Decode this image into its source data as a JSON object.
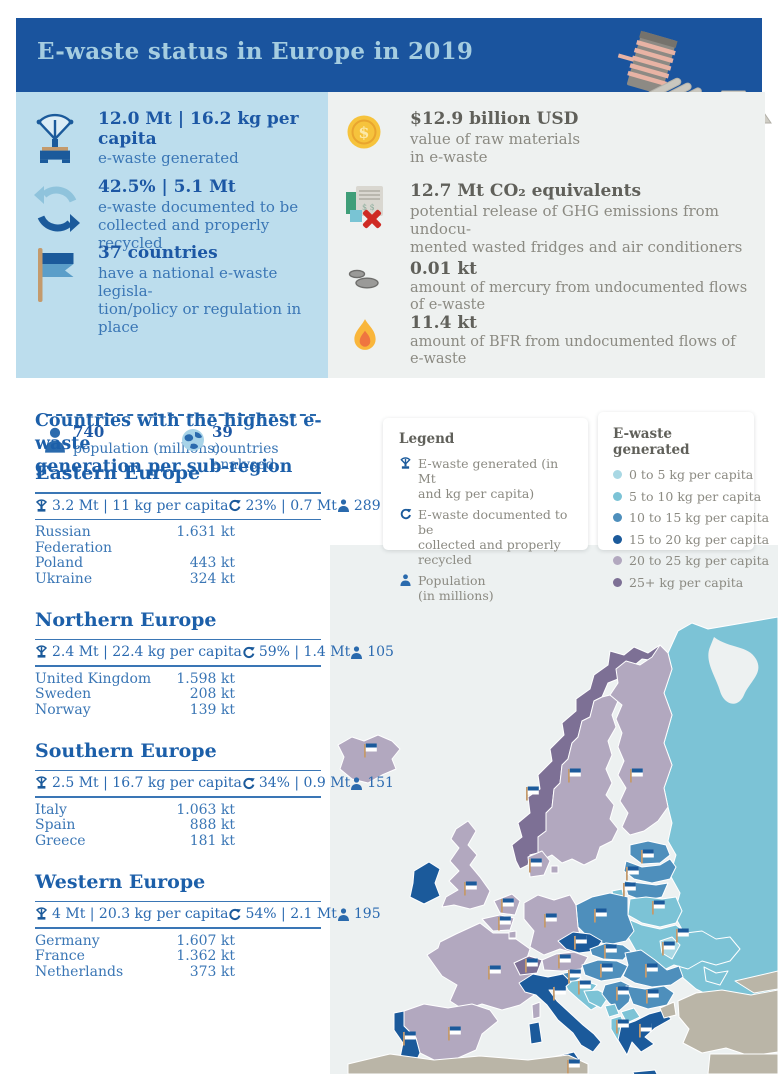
{
  "header": {
    "title": "E-waste status in Europe in 2019"
  },
  "summary_left": {
    "stats": [
      {
        "icon": "scale-icon",
        "value": "12.0 Mt | 16.2 kg per capita",
        "desc_lines": [
          "e-waste generated"
        ]
      },
      {
        "icon": "recycle-icon",
        "value": "42.5% | 5.1 Mt",
        "desc_lines": [
          "e-waste documented to be",
          "collected and properly recycled"
        ]
      },
      {
        "icon": "flag-icon",
        "value": "37 countries",
        "desc_lines": [
          "have a national e-waste legisla-",
          "tion/policy or regulation in place"
        ]
      }
    ],
    "footer": [
      {
        "icon": "person-icon",
        "value": "740",
        "label": "population (millions)"
      },
      {
        "icon": "globe-icon",
        "value": "39",
        "label": "countries analysed"
      }
    ]
  },
  "summary_right": {
    "stats": [
      {
        "icon": "coin-icon",
        "value": "$12.9 billion USD",
        "desc_lines": [
          "value of raw materials",
          "in e-waste"
        ]
      },
      {
        "icon": "fridge-icon",
        "value": "12.7 Mt CO₂ equivalents",
        "desc_lines": [
          "potential release of GHG emissions from undocu-",
          "mented wasted fridges and air conditioners"
        ]
      },
      {
        "icon": "mercury-icon",
        "value": "0.01 kt",
        "desc_lines": [
          "amount of mercury from undocumented flows of e-waste"
        ]
      },
      {
        "icon": "flame-icon",
        "value": "11.4 kt",
        "desc_lines": [
          "amount of BFR from undocumented flows of e-waste"
        ]
      }
    ]
  },
  "regions_section": {
    "title_lines": [
      "Countries with the highest e-waste",
      "generation per sub-region"
    ],
    "regions": [
      {
        "name": "Eastern Europe",
        "generated": "3.2 Mt | 11 kg per capita",
        "recycled": "23% | 0.7 Mt",
        "population": "289",
        "countries": [
          {
            "name": "Russian Federation",
            "value": "1.631 kt"
          },
          {
            "name": "Poland",
            "value": "443 kt"
          },
          {
            "name": "Ukraine",
            "value": "324 kt"
          }
        ]
      },
      {
        "name": "Northern Europe",
        "generated": "2.4 Mt | 22.4 kg per capita",
        "recycled": "59% | 1.4 Mt",
        "population": "105",
        "countries": [
          {
            "name": "United Kingdom",
            "value": "1.598 kt"
          },
          {
            "name": "Sweden",
            "value": "208 kt"
          },
          {
            "name": "Norway",
            "value": "139 kt"
          }
        ]
      },
      {
        "name": "Southern Europe",
        "generated": "2.5 Mt | 16.7 kg per capita",
        "recycled": "34% | 0.9 Mt",
        "population": "151",
        "countries": [
          {
            "name": "Italy",
            "value": "1.063 kt"
          },
          {
            "name": "Spain",
            "value": "888 kt"
          },
          {
            "name": "Greece",
            "value": "181 kt"
          }
        ]
      },
      {
        "name": "Western Europe",
        "generated": "4 Mt | 20.3 kg per capita",
        "recycled": "54% | 2.1 Mt",
        "population": "195",
        "countries": [
          {
            "name": "Germany",
            "value": "1.607 kt"
          },
          {
            "name": "France",
            "value": "1.362 kt"
          },
          {
            "name": "Netherlands",
            "value": "373 kt"
          }
        ]
      }
    ]
  },
  "legend": {
    "title": "Legend",
    "items": [
      {
        "icon": "scale-icon",
        "label_lines": [
          "E-waste generated (in Mt",
          "and kg per capita)"
        ]
      },
      {
        "icon": "recycle-icon",
        "label_lines": [
          "E-waste documented to be",
          "collected and properly recycled"
        ]
      },
      {
        "icon": "person-icon",
        "label_lines": [
          "Population",
          "(in millions)"
        ]
      }
    ]
  },
  "map_legend": {
    "title": "E-waste generated",
    "items": [
      {
        "label": "0 to 5 kg per capita",
        "color": "#a9d8e4"
      },
      {
        "label": "5 to 10 kg per capita",
        "color": "#7cc3d6"
      },
      {
        "label": "10 to 15 kg per capita",
        "color": "#4e8fbc"
      },
      {
        "label": "15 to 20 kg per capita",
        "color": "#1b5a9b"
      },
      {
        "label": "20 to 25 kg per capita",
        "color": "#b2a8bf"
      },
      {
        "label": "25+ kg per capita",
        "color": "#7d7095"
      }
    ]
  },
  "map": {
    "category_colors": {
      "c1": "#a9d8e4",
      "c2": "#7cc3d6",
      "c3": "#4e8fbc",
      "c4": "#1b5a9b",
      "c5": "#b2a8bf",
      "c6": "#7d7095",
      "na": "#bab5a7"
    },
    "sea_color": "#edf1f1",
    "countries": {
      "iceland": "c5",
      "norway": "c6",
      "sweden": "c5",
      "finland": "c5",
      "denmark": "c5",
      "denmark2": "c5",
      "russia": "c2",
      "kaliningrad": "c2",
      "estonia": "c3",
      "latvia": "c3",
      "lithuania": "c3",
      "belarus": "c2",
      "ukraine": "c2",
      "crimea": "c2",
      "moldova": "c1",
      "poland": "c3",
      "germany": "c5",
      "netherlands": "c5",
      "belgium": "c5",
      "luxembourg": "c5",
      "france": "c5",
      "corsica": "c5",
      "uk": "c5",
      "ireland": "c4",
      "spain": "c5",
      "portugal": "c4",
      "switzerland": "c6",
      "austria": "c5",
      "czechia": "c4",
      "slovakia": "c3",
      "hungary": "c3",
      "slovenia": "c3",
      "croatia": "c2",
      "bosnia": "c2",
      "serbia": "c3",
      "romania": "c3",
      "bulgaria": "c3",
      "montenegro": "c2",
      "macedonia": "c2",
      "albania": "c2",
      "greece": "c4",
      "crete": "c4",
      "italy": "c4",
      "sicily": "c4",
      "sardinia": "c4",
      "malta": "c4",
      "turkey": "na",
      "turkey_eu": "na",
      "levant": "na",
      "caucasus": "na",
      "africa": "na"
    },
    "flags": [
      [
        "iceland",
        36,
        357
      ],
      [
        "norway",
        198,
        400
      ],
      [
        "sweden",
        240,
        382
      ],
      [
        "finland",
        302,
        382
      ],
      [
        "denmark",
        201,
        472
      ],
      [
        "estonia",
        313,
        463
      ],
      [
        "latvia",
        298,
        480
      ],
      [
        "lithuania",
        295,
        496
      ],
      [
        "belarus",
        324,
        514
      ],
      [
        "poland",
        266,
        522
      ],
      [
        "ukraine",
        348,
        542
      ],
      [
        "moldova",
        334,
        555
      ],
      [
        "uk",
        136,
        495
      ],
      [
        "netherlands",
        173,
        512
      ],
      [
        "germany",
        216,
        527
      ],
      [
        "belgium",
        170,
        530
      ],
      [
        "czechia",
        246,
        549
      ],
      [
        "slovakia",
        276,
        558
      ],
      [
        "switzerland",
        197,
        572
      ],
      [
        "austria",
        230,
        568
      ],
      [
        "slovenia",
        240,
        583
      ],
      [
        "hungary",
        272,
        577
      ],
      [
        "romania",
        317,
        577
      ],
      [
        "croatia",
        250,
        594
      ],
      [
        "serbia",
        288,
        600
      ],
      [
        "bulgaria",
        318,
        603
      ],
      [
        "albania",
        288,
        633
      ],
      [
        "greece",
        311,
        637
      ],
      [
        "italy",
        225,
        600
      ],
      [
        "france",
        160,
        579
      ],
      [
        "spain",
        120,
        640
      ],
      [
        "portugal",
        75,
        645
      ],
      [
        "malta",
        239,
        673
      ]
    ]
  },
  "chart_data": [
    {
      "type": "table",
      "title": "Countries with the highest e-waste generation per sub-region",
      "columns": [
        "sub_region",
        "e_waste_generated",
        "documented_recycled",
        "population_millions",
        "top_countries"
      ],
      "rows": [
        [
          "Eastern Europe",
          "3.2 Mt | 11 kg per capita",
          "23% | 0.7 Mt",
          289,
          "Russian Federation 1.631 kt; Poland 443 kt; Ukraine 324 kt"
        ],
        [
          "Northern Europe",
          "2.4 Mt | 22.4 kg per capita",
          "59% | 1.4 Mt",
          105,
          "United Kingdom 1.598 kt; Sweden 208 kt; Norway 139 kt"
        ],
        [
          "Southern Europe",
          "2.5 Mt | 16.7 kg per capita",
          "34% | 0.9 Mt",
          151,
          "Italy 1.063 kt; Spain 888 kt; Greece 181 kt"
        ],
        [
          "Western Europe",
          "4 Mt | 20.3 kg per capita",
          "54% | 2.1 Mt",
          195,
          "Germany 1.607 kt; France 1.362 kt; Netherlands 373 kt"
        ]
      ]
    },
    {
      "type": "heatmap",
      "title": "E-waste generated (choropleth of Europe, kg per capita)",
      "legend": [
        "0 to 5",
        "5 to 10",
        "10 to 15",
        "15 to 20",
        "20 to 25",
        "25+"
      ],
      "assignments": {
        "0 to 5": [
          "Moldova"
        ],
        "5 to 10": [
          "Russia",
          "Belarus",
          "Ukraine",
          "Croatia",
          "Bosnia",
          "Montenegro",
          "North Macedonia",
          "Albania"
        ],
        "10 to 15": [
          "Estonia",
          "Latvia",
          "Lithuania",
          "Poland",
          "Slovakia",
          "Hungary",
          "Slovenia",
          "Serbia",
          "Romania",
          "Bulgaria"
        ],
        "15 to 20": [
          "Ireland",
          "Portugal",
          "Czechia",
          "Italy",
          "Greece",
          "Malta"
        ],
        "20 to 25": [
          "Iceland",
          "Sweden",
          "Finland",
          "Denmark",
          "United Kingdom",
          "Germany",
          "Netherlands",
          "Belgium",
          "Luxembourg",
          "France",
          "Spain",
          "Austria"
        ],
        "25+": [
          "Norway",
          "Switzerland"
        ]
      }
    }
  ]
}
